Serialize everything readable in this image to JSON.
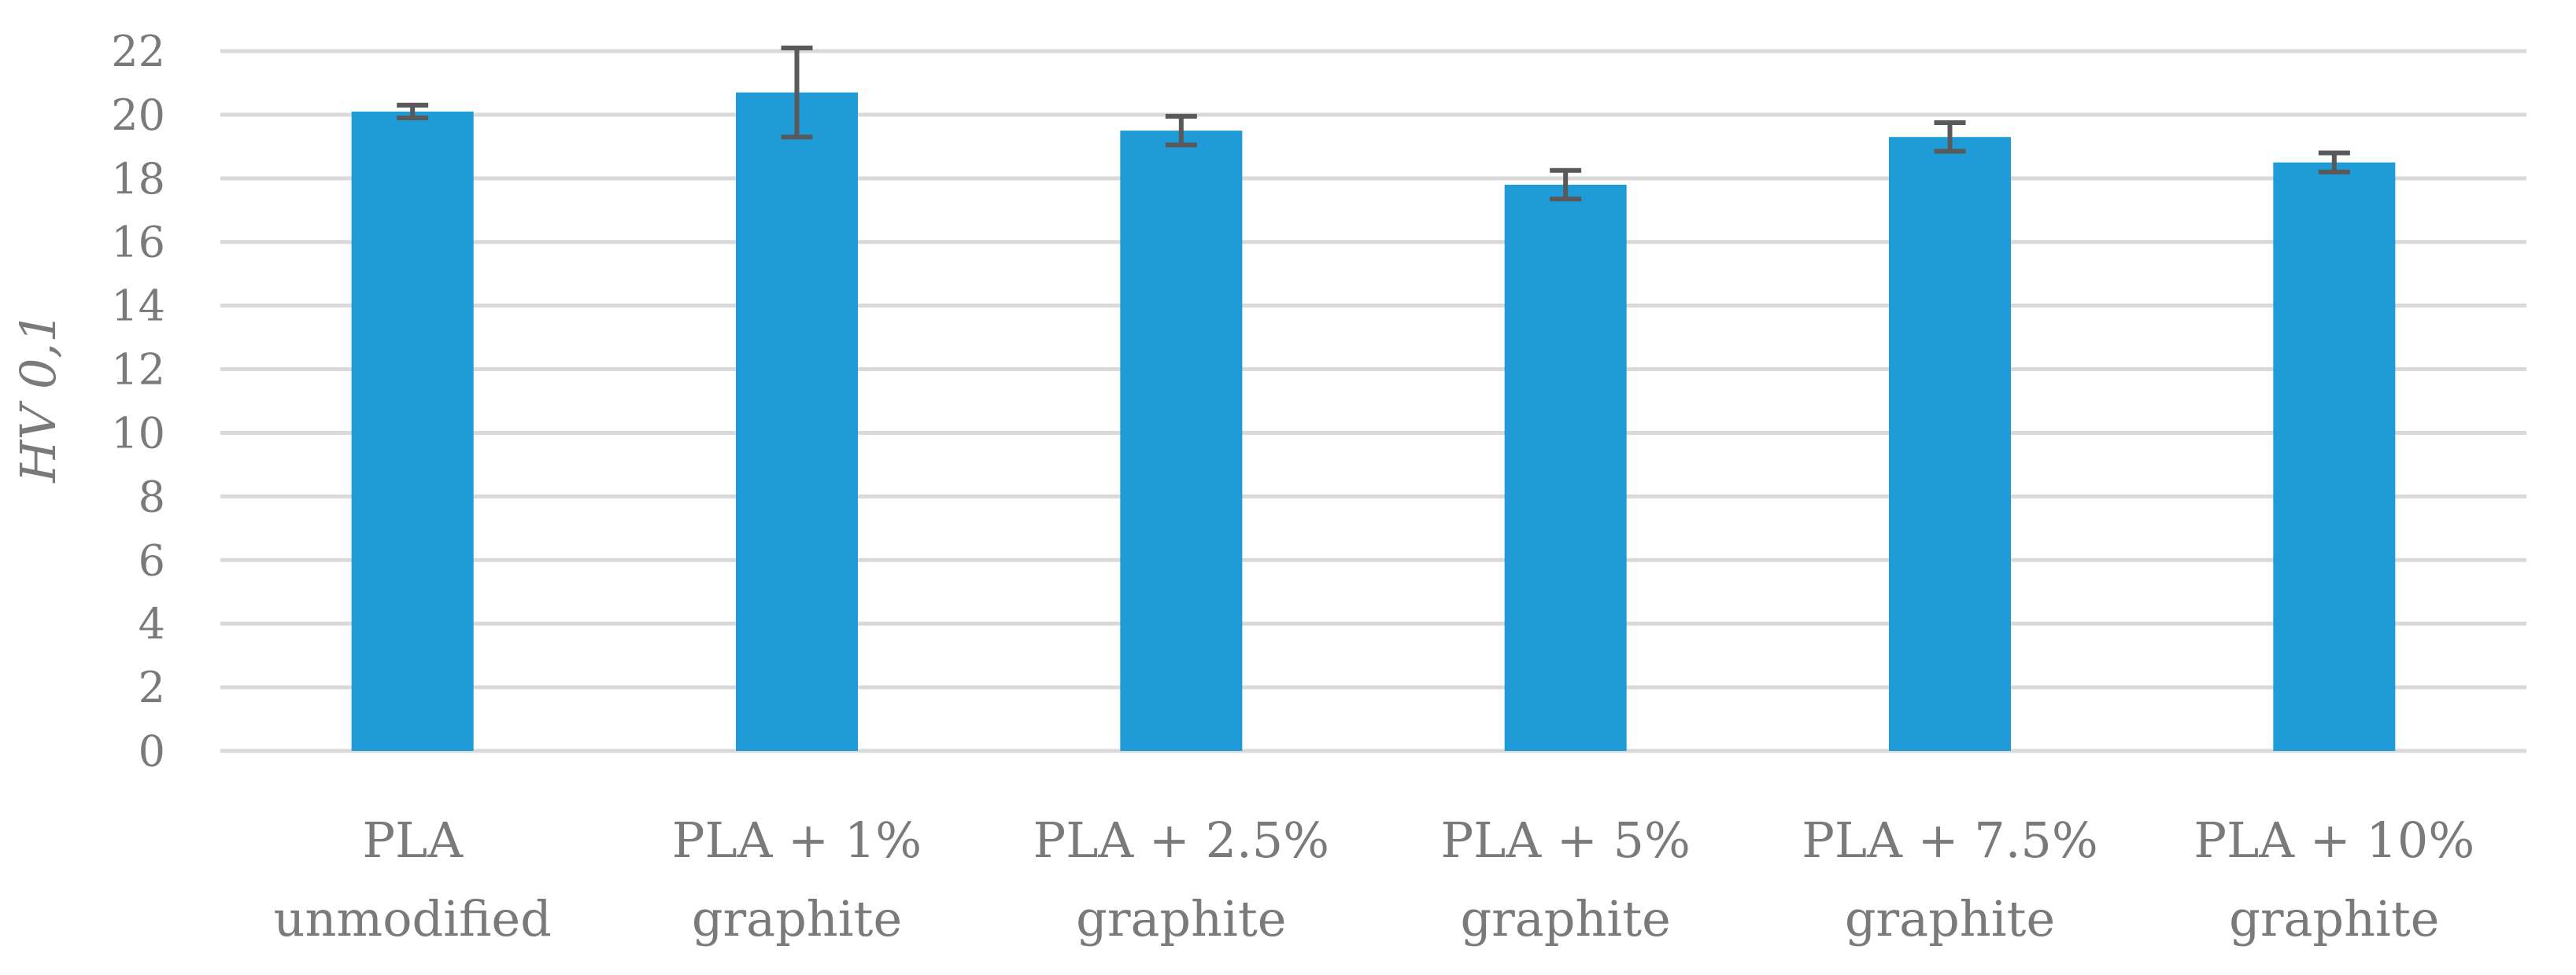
{
  "chart_data": {
    "type": "bar",
    "title": "",
    "xlabel": "",
    "ylabel": "HV 0,1",
    "ylim": [
      0,
      22
    ],
    "yticks": [
      0,
      2,
      4,
      6,
      8,
      10,
      12,
      14,
      16,
      18,
      20,
      22
    ],
    "grid": true,
    "legend": "none",
    "categories": [
      [
        "PLA",
        "unmodified"
      ],
      [
        "PLA + 1%",
        "graphite"
      ],
      [
        "PLA + 2.5%",
        "graphite"
      ],
      [
        "PLA + 5%",
        "graphite"
      ],
      [
        "PLA + 7.5%",
        "graphite"
      ],
      [
        "PLA + 10%",
        "graphite"
      ]
    ],
    "values": [
      20.1,
      20.7,
      19.5,
      17.8,
      19.3,
      18.5
    ],
    "errors": [
      0.2,
      1.4,
      0.45,
      0.45,
      0.45,
      0.3
    ],
    "colors": {
      "bar": "#1f9cd8",
      "error_bar": "#595959",
      "grid": "#d9d9d9",
      "text": "#7a7a7a"
    }
  }
}
